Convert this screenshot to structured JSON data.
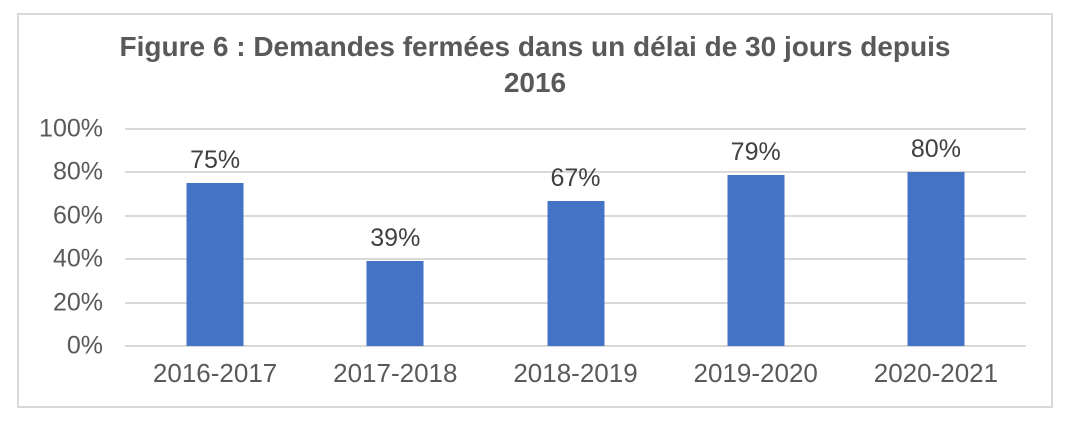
{
  "chart_data": {
    "type": "bar",
    "title": "Figure 6 : Demandes fermées dans un délai de 30 jours depuis 2016",
    "title_lines": [
      "Figure 6 : Demandes fermées dans un délai de 30 jours depuis",
      "2016"
    ],
    "categories": [
      "2016-2017",
      "2017-2018",
      "2018-2019",
      "2019-2020",
      "2020-2021"
    ],
    "values": [
      75,
      39,
      67,
      79,
      80
    ],
    "data_labels": [
      "75%",
      "39%",
      "67%",
      "79%",
      "80%"
    ],
    "xlabel": "",
    "ylabel": "",
    "ylim": [
      0,
      100
    ],
    "y_axis": {
      "min": 0,
      "max": 100,
      "ticks": [
        0,
        20,
        40,
        60,
        80,
        100
      ],
      "labels": [
        "0%",
        "20%",
        "40%",
        "60%",
        "80%",
        "100%"
      ]
    },
    "grid": "horizontal",
    "legend_position": "none",
    "colors": {
      "bar": "#4472C4",
      "gridline": "#D9D9D9",
      "frame_border": "#D9D9D9",
      "title_text": "#595959",
      "axis_label_text": "#595959",
      "data_label_text": "#404040",
      "background": "#FFFFFF"
    }
  }
}
